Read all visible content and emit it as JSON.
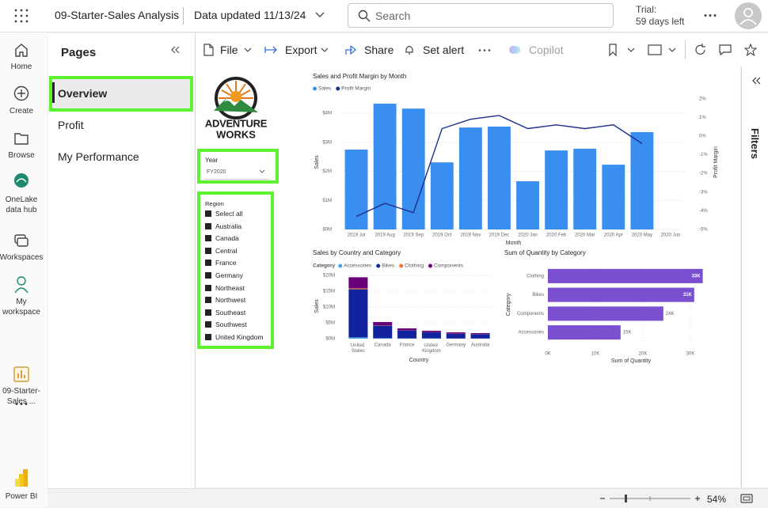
{
  "topbar": {
    "report_name": "09-Starter-Sales Analysis",
    "data_updated": "Data updated 11/13/24",
    "search": "Search",
    "trial": "Trial:",
    "trial_days": "59 days left"
  },
  "nav": {
    "items": [
      "Home",
      "Create",
      "Browse",
      "OneLake data hub",
      "Workspaces",
      "My workspace",
      "09-Starter-Sales ...",
      "Power BI"
    ]
  },
  "pages": {
    "title": "Pages",
    "items": [
      "Overview",
      "Profit",
      "My Performance"
    ]
  },
  "toolbar": {
    "items": [
      "File",
      "Export",
      "Share",
      "Set alert",
      "Copilot"
    ]
  },
  "filters": {
    "title": "Filters"
  },
  "logo": {
    "line1": "ADVENTURE",
    "line2": "WORKS"
  },
  "year_slicer": {
    "title": "Year",
    "value": "FY2020"
  },
  "region_slicer": {
    "title": "Region",
    "items": [
      "Select all",
      "Australia",
      "Canada",
      "Central",
      "France",
      "Germany",
      "Northeast",
      "Northwest",
      "Southeast",
      "Southwest",
      "United Kingdom"
    ]
  },
  "chart_data": [
    {
      "type": "combo",
      "title": "Sales and Profit Margin by Month",
      "x_label": "Month",
      "y_label": "Sales",
      "y2_label": "Profit Margin",
      "categories": [
        "2019 Jul",
        "2019 Aug",
        "2019 Sep",
        "2019 Oct",
        "2019 Nov",
        "2019 Dec",
        "2020 Jan",
        "2020 Feb",
        "2020 Mar",
        "2020 Apr",
        "2020 May",
        "2020 Jun"
      ],
      "series": [
        {
          "name": "Sales",
          "color": "#3a8ef0",
          "values": [
            2750000,
            4330000,
            4160000,
            2310000,
            3510000,
            3540000,
            1660000,
            2720000,
            2780000,
            2230000,
            3350000,
            null
          ]
        },
        {
          "name": "Profit Margin",
          "color": "#1c2f8a",
          "axis": "y2",
          "values": [
            -4.3,
            -3.6,
            -4.1,
            0.4,
            0.9,
            1.1,
            0.4,
            0.6,
            0.4,
            0.6,
            -0.4,
            null
          ]
        }
      ],
      "ylim": [
        0,
        4630000
      ],
      "yticks": [
        {
          "value": 0,
          "label": "$0M"
        },
        {
          "value": 1000000,
          "label": "$1M"
        },
        {
          "value": 2000000,
          "label": "$2M"
        },
        {
          "value": 3000000,
          "label": "$3M"
        },
        {
          "value": 4000000,
          "label": "$4M"
        }
      ],
      "y2lim": [
        -5,
        2.2
      ],
      "y2ticks": [
        {
          "value": 2,
          "label": "2%"
        },
        {
          "value": 1,
          "label": "1%"
        },
        {
          "value": 0,
          "label": "0%"
        },
        {
          "value": -1,
          "label": "-1%"
        },
        {
          "value": -2,
          "label": "-2%"
        },
        {
          "value": -3,
          "label": "-3%"
        },
        {
          "value": -4,
          "label": "-4%"
        },
        {
          "value": -5,
          "label": "-5%"
        }
      ],
      "grid": true
    },
    {
      "type": "stacked_bar",
      "title": "Sales by Country and Category",
      "legend_title": "Category",
      "x_label": "Country",
      "y_label": "Sales",
      "categories": [
        "United States",
        "Canada",
        "France",
        "United Kingdom",
        "Germany",
        "Australia"
      ],
      "series": [
        {
          "name": "Accessories",
          "color": "#4aa3e8",
          "values": [
            400000,
            150000,
            100000,
            100000,
            60000,
            60000
          ]
        },
        {
          "name": "Bikes",
          "color": "#12239e",
          "values": [
            15200000,
            4000000,
            2500000,
            1900000,
            1500000,
            1350000
          ]
        },
        {
          "name": "Clothing",
          "color": "#e8743b",
          "values": [
            300000,
            100000,
            50000,
            50000,
            40000,
            40000
          ]
        },
        {
          "name": "Components",
          "color": "#6b007b",
          "values": [
            3500000,
            1000000,
            600000,
            450000,
            400000,
            300000
          ]
        }
      ],
      "ylim": [
        0,
        20000000
      ],
      "yticks": [
        {
          "value": 0,
          "label": "$0M"
        },
        {
          "value": 5000000,
          "label": "$5M"
        },
        {
          "value": 10000000,
          "label": "$10M"
        },
        {
          "value": 15000000,
          "label": "$15M"
        },
        {
          "value": 20000000,
          "label": "$20M"
        }
      ],
      "grid": true
    },
    {
      "type": "hbar",
      "title": "Sum of Quantity by Category",
      "x_label": "Sum of Quantity",
      "y_label": "Category",
      "categories": [
        "Clothing",
        "Bikes",
        "Components",
        "Accessories"
      ],
      "values": [
        32600,
        30800,
        24300,
        15300
      ],
      "value_labels": [
        "33K",
        "31K",
        "24K",
        "15K"
      ],
      "color": "#7a4fd0",
      "xlim": [
        0,
        33000
      ],
      "xticks": [
        {
          "value": 0,
          "label": "0K"
        },
        {
          "value": 10000,
          "label": "10K"
        },
        {
          "value": 20000,
          "label": "20K"
        },
        {
          "value": 30000,
          "label": "30K"
        }
      ],
      "grid": true
    }
  ],
  "status": {
    "zoom": "54%"
  }
}
